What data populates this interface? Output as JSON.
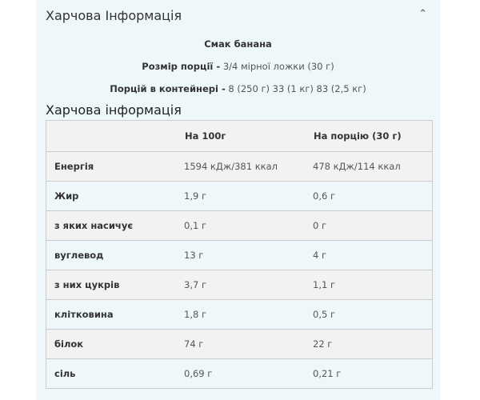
{
  "section": {
    "title": "Харчова Інформація",
    "toggle_icon": "chevron-up-icon"
  },
  "flavor": "Смак банана",
  "serving_size": {
    "label": "Розмір порції -",
    "value": "3/4 мірної ложки (30 г)"
  },
  "servings": {
    "label": "Порцій в контейнері -",
    "value": "8 (250 г) 33 (1 кг) 83 (2,5 кг)"
  },
  "table": {
    "title": "Харчова інформація",
    "headers": [
      "",
      "На 100г",
      "На порцію (30 г)"
    ],
    "rows": [
      [
        "Енергія",
        "1594 кДж/381 ккал",
        "478 кДж/114 ккал"
      ],
      [
        "Жир",
        "1,9 г",
        "0,6 г"
      ],
      [
        "з яких насичує",
        "0,1 г",
        "0 г"
      ],
      [
        "вуглевод",
        "13 г",
        "4 г"
      ],
      [
        "з них цукрів",
        "3,7 г",
        "1,1 г"
      ],
      [
        "клітковина",
        "1,8 г",
        "0,5 г"
      ],
      [
        "білок",
        "74 г",
        "22 г"
      ],
      [
        "сіль",
        "0,69 г",
        "0,21 г"
      ]
    ]
  }
}
